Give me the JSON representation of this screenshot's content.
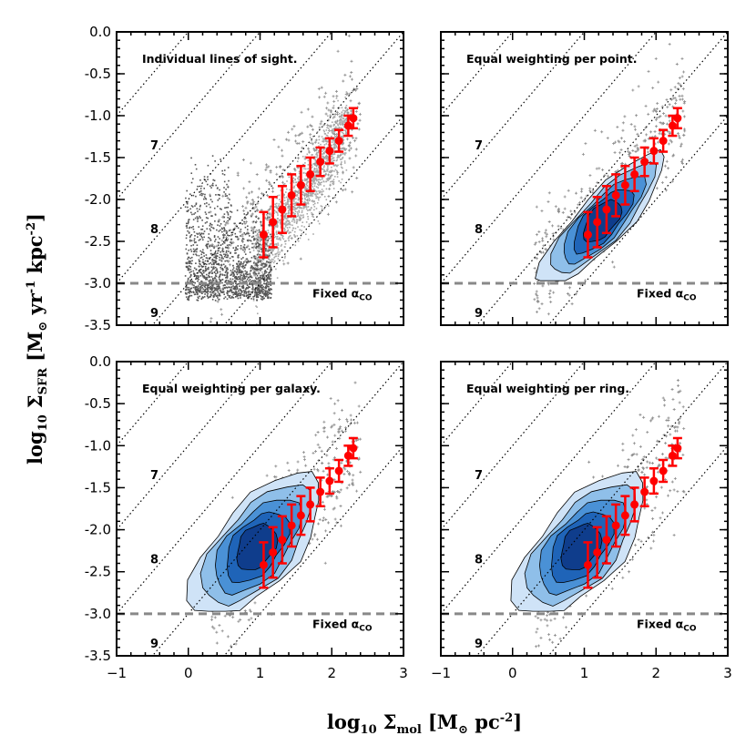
{
  "figure": {
    "xlabel": {
      "prefix": "log",
      "prefix_sub": "10",
      "symbol": "Σ",
      "symbol_sub": "mol",
      "units": "[M",
      "units_sub": "⊙",
      "units_rest": " pc",
      "units_sup": "-2",
      "close": "]"
    },
    "ylabel": {
      "prefix": "log",
      "prefix_sub": "10",
      "symbol": "Σ",
      "symbol_sub": "SFR",
      "units": "[M",
      "units_sub": "⊙",
      "units_rest": " yr",
      "units_sup1": "-1",
      "units_rest2": " kpc",
      "units_sup2": "-2",
      "close": "]"
    }
  },
  "chart_data": [
    {
      "type": "scatter",
      "title": "Individual lines of sight.",
      "style": "points",
      "xlim": [
        -1,
        3
      ],
      "ylim": [
        -3.5,
        0.0
      ],
      "xticks": [
        "−1",
        "0",
        "1",
        "2",
        "3"
      ],
      "yticks": [
        "0.0",
        "-0.5",
        "-1.0",
        "-1.5",
        "-2.0",
        "-2.5",
        "-3.0",
        "-3.5"
      ],
      "line_labels": [
        "7",
        "8",
        "9"
      ],
      "threshold_label": {
        "text": "Fixed α",
        "sub": "CO"
      },
      "threshold_y": -3.0,
      "binned": {
        "x": [
          1.05,
          1.18,
          1.31,
          1.44,
          1.57,
          1.7,
          1.84,
          1.97,
          2.1,
          2.23,
          2.3
        ],
        "y": [
          -2.42,
          -2.27,
          -2.12,
          -1.95,
          -1.83,
          -1.7,
          -1.55,
          -1.42,
          -1.3,
          -1.12,
          -1.03
        ],
        "err": [
          0.27,
          0.3,
          0.28,
          0.25,
          0.23,
          0.2,
          0.17,
          0.15,
          0.13,
          0.12,
          0.12
        ]
      }
    },
    {
      "type": "scatter",
      "title": "Equal weighting per point.",
      "style": "contours",
      "xlim": [
        -1,
        3
      ],
      "ylim": [
        -3.5,
        0.0
      ],
      "xticks": [
        "−1",
        "0",
        "1",
        "2",
        "3"
      ],
      "yticks": [
        "0.0",
        "-0.5",
        "-1.0",
        "-1.5",
        "-2.0",
        "-2.5",
        "-3.0",
        "-3.5"
      ],
      "line_labels": [
        "7",
        "8",
        "9"
      ],
      "threshold_label": {
        "text": "Fixed α",
        "sub": "CO"
      },
      "threshold_y": -3.0,
      "binned": {
        "x": [
          1.05,
          1.18,
          1.31,
          1.44,
          1.57,
          1.7,
          1.84,
          1.97,
          2.1,
          2.23,
          2.3
        ],
        "y": [
          -2.42,
          -2.27,
          -2.12,
          -1.95,
          -1.83,
          -1.7,
          -1.55,
          -1.42,
          -1.3,
          -1.12,
          -1.03
        ],
        "err": [
          0.27,
          0.3,
          0.28,
          0.25,
          0.23,
          0.2,
          0.17,
          0.15,
          0.13,
          0.12,
          0.12
        ]
      }
    },
    {
      "type": "scatter",
      "title": "Equal weighting per galaxy.",
      "style": "contours",
      "xlim": [
        -1,
        3
      ],
      "ylim": [
        -3.5,
        0.0
      ],
      "xticks": [
        "−1",
        "0",
        "1",
        "2",
        "3"
      ],
      "yticks": [
        "0.0",
        "-0.5",
        "-1.0",
        "-1.5",
        "-2.0",
        "-2.5",
        "-3.0",
        "-3.5"
      ],
      "line_labels": [
        "7",
        "8",
        "9"
      ],
      "threshold_label": {
        "text": "Fixed α",
        "sub": "CO"
      },
      "threshold_y": -3.0,
      "binned": {
        "x": [
          1.05,
          1.18,
          1.31,
          1.44,
          1.57,
          1.7,
          1.84,
          1.97,
          2.1,
          2.23,
          2.3
        ],
        "y": [
          -2.42,
          -2.27,
          -2.12,
          -1.95,
          -1.83,
          -1.7,
          -1.55,
          -1.42,
          -1.3,
          -1.12,
          -1.03
        ],
        "err": [
          0.27,
          0.3,
          0.28,
          0.25,
          0.23,
          0.2,
          0.17,
          0.15,
          0.13,
          0.12,
          0.12
        ]
      }
    },
    {
      "type": "scatter",
      "title": "Equal weighting per ring.",
      "style": "contours",
      "xlim": [
        -1,
        3
      ],
      "ylim": [
        -3.5,
        0.0
      ],
      "xticks": [
        "−1",
        "0",
        "1",
        "2",
        "3"
      ],
      "yticks": [
        "0.0",
        "-0.5",
        "-1.0",
        "-1.5",
        "-2.0",
        "-2.5",
        "-3.0",
        "-3.5"
      ],
      "line_labels": [
        "7",
        "8",
        "9"
      ],
      "threshold_label": {
        "text": "Fixed α",
        "sub": "CO"
      },
      "threshold_y": -3.0,
      "binned": {
        "x": [
          1.05,
          1.18,
          1.31,
          1.44,
          1.57,
          1.7,
          1.84,
          1.97,
          2.1,
          2.23,
          2.3
        ],
        "y": [
          -2.42,
          -2.27,
          -2.12,
          -1.95,
          -1.83,
          -1.7,
          -1.55,
          -1.42,
          -1.3,
          -1.12,
          -1.03
        ],
        "err": [
          0.27,
          0.3,
          0.28,
          0.25,
          0.23,
          0.2,
          0.17,
          0.15,
          0.13,
          0.12,
          0.12
        ]
      }
    }
  ],
  "colors": {
    "points_dark": "#555555",
    "points_light": "#a9a9a9",
    "sparse": "#8c8c8c",
    "contour_1": "#cfe3f7",
    "contour_2": "#8fbfe9",
    "contour_3": "#4a91d6",
    "contour_4": "#1f64b8",
    "contour_5": "#0f3d8c",
    "binned": "#ff0000",
    "threshold": "#888888",
    "diag": "#000000"
  }
}
